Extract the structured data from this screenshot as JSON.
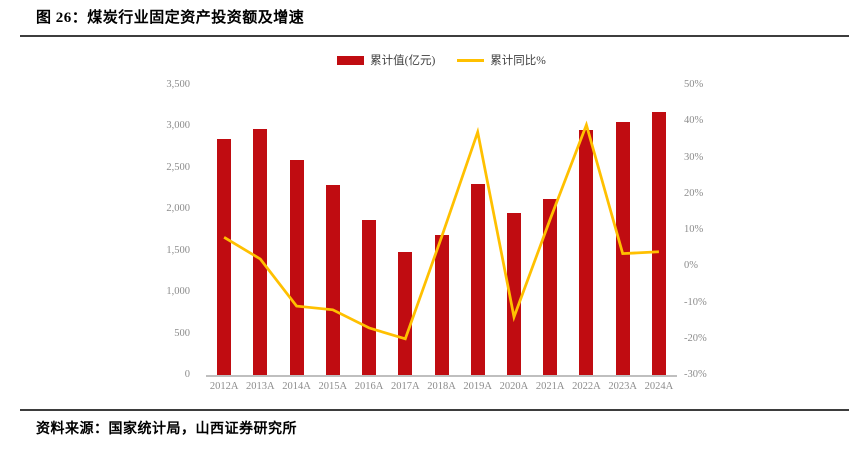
{
  "page": {
    "title": "图 26：煤炭行业固定资产投资额及增速",
    "source": "资料来源：国家统计局，山西证券研究所"
  },
  "colors": {
    "bar_red": "#c00c11",
    "line_yellow": "#ffc000",
    "axis_text_gray": "#8c8c8c",
    "baseline_gray": "#bfbfbf",
    "rule_dark": "#3d3d3d"
  },
  "chart_data": {
    "type": "combo",
    "title": "煤炭行业固定资产投资额及增速",
    "categories": [
      "2012A",
      "2013A",
      "2014A",
      "2015A",
      "2016A",
      "2017A",
      "2018A",
      "2019A",
      "2020A",
      "2021A",
      "2022A",
      "2023A",
      "2024A"
    ],
    "series": [
      {
        "name": "累计值(亿元)",
        "type": "bar",
        "axis": "left",
        "color": "#c00c11",
        "values": [
          2850,
          2970,
          2600,
          2290,
          1870,
          1480,
          1690,
          2310,
          1950,
          2120,
          2960,
          3050,
          3170
        ]
      },
      {
        "name": "累计同比%",
        "type": "line",
        "axis": "right",
        "color": "#ffc000",
        "values": [
          8,
          2,
          -11,
          -12,
          -17,
          -20,
          8,
          37,
          -14,
          13,
          39,
          3.5,
          4
        ]
      }
    ],
    "left_axis": {
      "min": 0,
      "max": 3500,
      "step": 500,
      "tick_labels": [
        "0",
        "500",
        "1,000",
        "1,500",
        "2,000",
        "2,500",
        "3,000",
        "3,500"
      ]
    },
    "right_axis": {
      "min": -30,
      "max": 50,
      "step": 10,
      "tick_labels": [
        "-30%",
        "-20%",
        "-10%",
        "0%",
        "10%",
        "20%",
        "30%",
        "40%",
        "50%"
      ]
    },
    "grid": false,
    "legend_position": "top"
  }
}
